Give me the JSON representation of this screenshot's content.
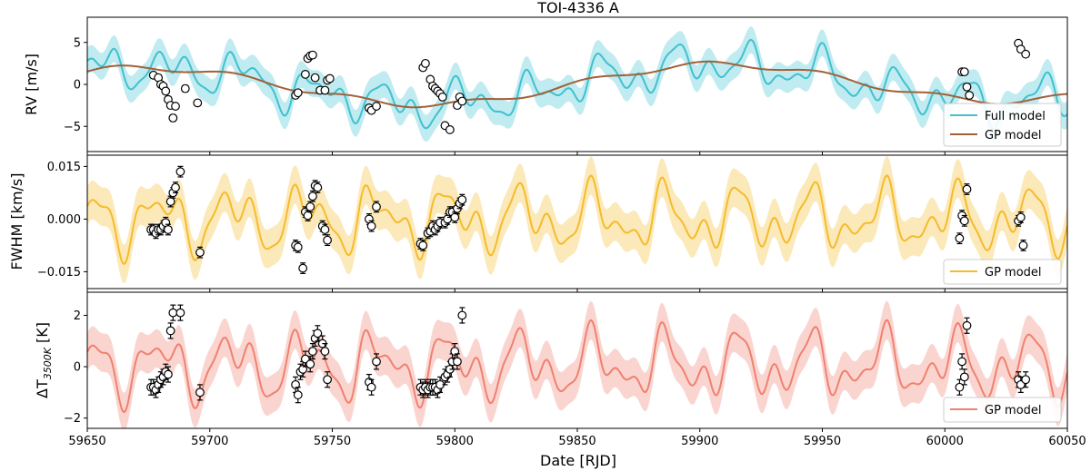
{
  "figure": {
    "title": "TOI-4336 A"
  },
  "legend_text": {
    "full": "Full model",
    "gp": "GP model"
  },
  "colors": {
    "rv_full": "#3fc1d0",
    "rv_gp": "#a0613a",
    "fwhm": "#f5bb2a",
    "temp": "#f08070"
  },
  "chart_data": [
    {
      "type": "line",
      "title": "TOI-4336 A",
      "ylabel": "RV [m/s]",
      "xlim": [
        59650,
        60050
      ],
      "ylim": [
        -8,
        8
      ],
      "xticks": [
        59650,
        59700,
        59750,
        59800,
        59850,
        59900,
        59950,
        60000,
        60050
      ],
      "yticks": [
        -5,
        0,
        5
      ],
      "legend": {
        "position": "lower-right",
        "entries": [
          "Full model",
          "GP model"
        ]
      },
      "series": [
        {
          "name": "Full model",
          "model": "full",
          "band_half_width": 1.6
        },
        {
          "name": "GP model",
          "model": "gp"
        }
      ],
      "observations": [
        [
          59677,
          1.1,
          0.3
        ],
        [
          59679,
          0.8,
          0.3
        ],
        [
          59680,
          0.0,
          0.3
        ],
        [
          59681,
          -0.2,
          0.3
        ],
        [
          59682,
          -0.8,
          0.3
        ],
        [
          59683,
          -1.8,
          0.3
        ],
        [
          59684,
          -2.5,
          0.3
        ],
        [
          59685,
          -4.0,
          0.4
        ],
        [
          59686,
          -2.6,
          0.3
        ],
        [
          59690,
          -0.5,
          0.4
        ],
        [
          59695,
          -2.2,
          0.3
        ],
        [
          59735,
          -1.3,
          0.3
        ],
        [
          59736,
          -1.0,
          0.3
        ],
        [
          59739,
          1.2,
          0.3
        ],
        [
          59740,
          3.1,
          0.3
        ],
        [
          59741,
          3.4,
          0.3
        ],
        [
          59742,
          3.5,
          0.3
        ],
        [
          59743,
          0.8,
          0.3
        ],
        [
          59745,
          -0.7,
          0.3
        ],
        [
          59747,
          -0.7,
          0.3
        ],
        [
          59748,
          0.5,
          0.3
        ],
        [
          59749,
          0.7,
          0.3
        ],
        [
          59765,
          -2.8,
          0.3
        ],
        [
          59766,
          -3.1,
          0.3
        ],
        [
          59768,
          -2.6,
          0.3
        ],
        [
          59787,
          2.0,
          0.3
        ],
        [
          59788,
          2.5,
          0.3
        ],
        [
          59790,
          0.6,
          0.3
        ],
        [
          59791,
          -0.2,
          0.3
        ],
        [
          59792,
          -0.5,
          0.3
        ],
        [
          59793,
          -0.8,
          0.3
        ],
        [
          59794,
          -1.1,
          0.3
        ],
        [
          59795,
          -1.5,
          0.3
        ],
        [
          59796,
          -4.9,
          0.3
        ],
        [
          59798,
          -5.4,
          0.3
        ],
        [
          59801,
          -2.5,
          0.3
        ],
        [
          59802,
          -1.5,
          0.3
        ],
        [
          59803,
          -2.0,
          0.3
        ],
        [
          60007,
          1.5,
          0.3
        ],
        [
          60008,
          1.5,
          0.3
        ],
        [
          60009,
          -0.3,
          0.3
        ],
        [
          60010,
          -1.3,
          0.3
        ],
        [
          60030,
          4.9,
          0.3
        ],
        [
          60031,
          4.2,
          0.3
        ],
        [
          60033,
          3.6,
          0.3
        ]
      ]
    },
    {
      "type": "line",
      "ylabel": "FWHM [km/s]",
      "xlim": [
        59650,
        60050
      ],
      "ylim": [
        -0.0198,
        0.0182
      ],
      "xticks": [
        59650,
        59700,
        59750,
        59800,
        59850,
        59900,
        59950,
        60000,
        60050
      ],
      "yticks": [
        -0.015,
        0.0,
        0.015
      ],
      "ytick_labels": [
        "−0.015",
        "0.000",
        "0.015"
      ],
      "legend": {
        "position": "lower-right",
        "entries": [
          "GP model"
        ]
      },
      "series": [
        {
          "name": "GP model",
          "model": "fwhm",
          "band_half_width": 0.0055
        }
      ],
      "observations": [
        [
          59676,
          -0.003,
          0.0015
        ],
        [
          59677,
          -0.003,
          0.0015
        ],
        [
          59678,
          -0.004,
          0.0015
        ],
        [
          59679,
          -0.003,
          0.0015
        ],
        [
          59680,
          -0.003,
          0.0015
        ],
        [
          59681,
          -0.002,
          0.0015
        ],
        [
          59682,
          -0.001,
          0.0015
        ],
        [
          59683,
          -0.003,
          0.0015
        ],
        [
          59684,
          0.005,
          0.0015
        ],
        [
          59685,
          0.0075,
          0.0015
        ],
        [
          59686,
          0.009,
          0.0015
        ],
        [
          59688,
          0.0135,
          0.0015
        ],
        [
          59696,
          -0.0095,
          0.0015
        ],
        [
          59735,
          -0.0075,
          0.0015
        ],
        [
          59736,
          -0.008,
          0.0015
        ],
        [
          59738,
          -0.014,
          0.0015
        ],
        [
          59739,
          0.002,
          0.0015
        ],
        [
          59740,
          0.001,
          0.0015
        ],
        [
          59741,
          0.0035,
          0.0015
        ],
        [
          59742,
          0.0065,
          0.0015
        ],
        [
          59743,
          0.0095,
          0.0015
        ],
        [
          59744,
          0.009,
          0.0015
        ],
        [
          59746,
          -0.002,
          0.0015
        ],
        [
          59747,
          -0.003,
          0.0015
        ],
        [
          59748,
          -0.006,
          0.0015
        ],
        [
          59765,
          0.0,
          0.0015
        ],
        [
          59766,
          -0.002,
          0.0015
        ],
        [
          59768,
          0.0035,
          0.0015
        ],
        [
          59786,
          -0.007,
          0.0015
        ],
        [
          59787,
          -0.0075,
          0.0015
        ],
        [
          59789,
          -0.004,
          0.0015
        ],
        [
          59790,
          -0.0035,
          0.0015
        ],
        [
          59791,
          -0.002,
          0.0015
        ],
        [
          59792,
          -0.003,
          0.0015
        ],
        [
          59793,
          -0.002,
          0.0015
        ],
        [
          59794,
          -0.001,
          0.0015
        ],
        [
          59796,
          -0.001,
          0.0015
        ],
        [
          59797,
          0.0,
          0.0015
        ],
        [
          59798,
          0.002,
          0.0015
        ],
        [
          59799,
          0.002,
          0.0015
        ],
        [
          59800,
          0.0005,
          0.0015
        ],
        [
          59801,
          0.003,
          0.0015
        ],
        [
          59802,
          0.0045,
          0.0015
        ],
        [
          59803,
          0.0055,
          0.0015
        ],
        [
          60006,
          -0.0055,
          0.0015
        ],
        [
          60007,
          0.001,
          0.0015
        ],
        [
          60008,
          -0.0005,
          0.0015
        ],
        [
          60009,
          0.0085,
          0.0015
        ],
        [
          60030,
          -0.0005,
          0.0015
        ],
        [
          60031,
          0.0005,
          0.0015
        ],
        [
          60032,
          -0.0075,
          0.0015
        ]
      ]
    },
    {
      "type": "line",
      "ylabel": "ΔT3500K [K]",
      "xlabel": "Date [RJD]",
      "xlim": [
        59650,
        60050
      ],
      "ylim": [
        -2.4,
        2.9
      ],
      "xticks": [
        59650,
        59700,
        59750,
        59800,
        59850,
        59900,
        59950,
        60000,
        60050
      ],
      "yticks": [
        -2,
        0,
        2
      ],
      "legend": {
        "position": "lower-right",
        "entries": [
          "GP model"
        ]
      },
      "series": [
        {
          "name": "GP model",
          "model": "temp",
          "band_half_width": 0.75
        }
      ],
      "observations": [
        [
          59676,
          -0.8,
          0.3
        ],
        [
          59677,
          -0.8,
          0.3
        ],
        [
          59678,
          -0.9,
          0.3
        ],
        [
          59679,
          -0.7,
          0.3
        ],
        [
          59680,
          -0.5,
          0.3
        ],
        [
          59681,
          -0.4,
          0.3
        ],
        [
          59682,
          -0.2,
          0.3
        ],
        [
          59683,
          -0.3,
          0.3
        ],
        [
          59684,
          1.4,
          0.3
        ],
        [
          59685,
          2.1,
          0.3
        ],
        [
          59688,
          2.1,
          0.3
        ],
        [
          59696,
          -1.0,
          0.3
        ],
        [
          59735,
          -0.7,
          0.3
        ],
        [
          59736,
          -1.1,
          0.3
        ],
        [
          59737,
          -0.2,
          0.3
        ],
        [
          59738,
          -0.1,
          0.3
        ],
        [
          59739,
          0.3,
          0.3
        ],
        [
          59741,
          0.1,
          0.3
        ],
        [
          59742,
          0.6,
          0.3
        ],
        [
          59743,
          1.1,
          0.3
        ],
        [
          59744,
          1.3,
          0.3
        ],
        [
          59746,
          0.9,
          0.3
        ],
        [
          59747,
          0.6,
          0.3
        ],
        [
          59748,
          -0.5,
          0.3
        ],
        [
          59765,
          -0.6,
          0.3
        ],
        [
          59766,
          -0.8,
          0.3
        ],
        [
          59768,
          0.2,
          0.3
        ],
        [
          59786,
          -0.8,
          0.3
        ],
        [
          59787,
          -0.9,
          0.3
        ],
        [
          59788,
          -0.8,
          0.3
        ],
        [
          59789,
          -0.9,
          0.3
        ],
        [
          59790,
          -0.8,
          0.3
        ],
        [
          59791,
          -0.8,
          0.3
        ],
        [
          59792,
          -0.8,
          0.3
        ],
        [
          59793,
          -0.9,
          0.3
        ],
        [
          59794,
          -0.7,
          0.3
        ],
        [
          59796,
          -0.4,
          0.3
        ],
        [
          59797,
          -0.3,
          0.3
        ],
        [
          59798,
          -0.1,
          0.3
        ],
        [
          59799,
          0.2,
          0.3
        ],
        [
          59800,
          0.6,
          0.3
        ],
        [
          59801,
          0.2,
          0.3
        ],
        [
          59803,
          2.0,
          0.3
        ],
        [
          60006,
          -0.8,
          0.3
        ],
        [
          60007,
          0.2,
          0.3
        ],
        [
          60008,
          -0.4,
          0.3
        ],
        [
          60009,
          1.6,
          0.3
        ],
        [
          60030,
          -0.5,
          0.3
        ],
        [
          60031,
          -0.7,
          0.3
        ],
        [
          60033,
          -0.5,
          0.3
        ]
      ]
    }
  ]
}
